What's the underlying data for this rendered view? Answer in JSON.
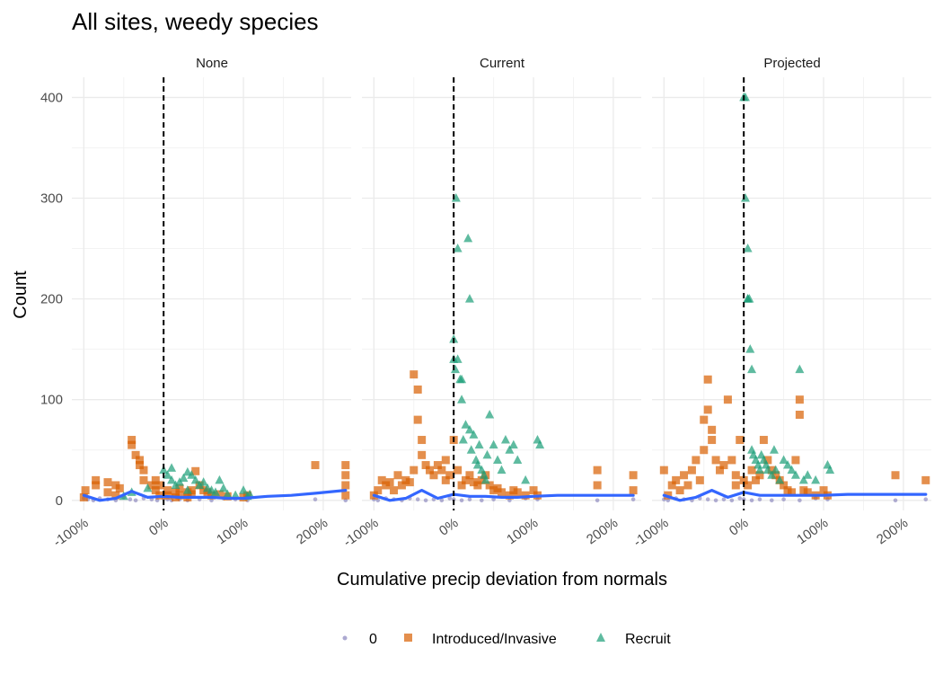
{
  "chart_data": {
    "type": "scatter",
    "title": "All sites, weedy species",
    "xlabel": "Cumulative precip deviation from normals",
    "ylabel": "Count",
    "xlim": [
      -115,
      235
    ],
    "ylim": [
      -10,
      420
    ],
    "x_ticks": [
      -100,
      0,
      100,
      200
    ],
    "x_tick_labels": [
      "-100%",
      "0%",
      "100%",
      "200%"
    ],
    "y_ticks": [
      0,
      100,
      200,
      300,
      400
    ],
    "y_tick_labels": [
      "0",
      "100",
      "200",
      "300",
      "400"
    ],
    "vline_x": 0,
    "grid": true,
    "legend_position": "bottom",
    "legend": [
      {
        "key": "zero",
        "label": "0",
        "color": "#7570b3",
        "shape": "circle"
      },
      {
        "key": "invasive",
        "label": "Introduced/Invasive",
        "color": "#d95f02",
        "shape": "square"
      },
      {
        "key": "recruit",
        "label": "Recruit",
        "color": "#1b9e77",
        "shape": "triangle"
      }
    ],
    "smooth_color": "#3366ff",
    "panels": [
      {
        "strip": "None",
        "points": {
          "zero": {
            "x": [
              -100,
              -95,
              -88,
              -80,
              -70,
              -60,
              -50,
              -42,
              -35,
              -25,
              -15,
              -8,
              0,
              5,
              10,
              20,
              30,
              45,
              60,
              75,
              90,
              105,
              190,
              228
            ],
            "y": [
              2,
              1,
              0,
              2,
              1,
              0,
              3,
              1,
              0,
              2,
              1,
              0,
              2,
              1,
              0,
              1,
              0,
              1,
              0,
              2,
              1,
              0,
              1,
              0
            ]
          },
          "invasive": {
            "x": [
              -100,
              -98,
              -85,
              -85,
              -70,
              -70,
              -60,
              -60,
              -55,
              -40,
              -40,
              -35,
              -30,
              -30,
              -25,
              -25,
              -15,
              -10,
              -10,
              -5,
              -5,
              5,
              5,
              15,
              15,
              20,
              20,
              30,
              30,
              35,
              35,
              40,
              45,
              50,
              55,
              60,
              70,
              80,
              100,
              105,
              190,
              228,
              228,
              228,
              228
            ],
            "y": [
              3,
              10,
              20,
              15,
              18,
              8,
              15,
              5,
              12,
              60,
              55,
              45,
              40,
              35,
              30,
              20,
              15,
              10,
              20,
              5,
              15,
              10,
              5,
              3,
              8,
              12,
              5,
              8,
              3,
              10,
              6,
              29,
              15,
              10,
              8,
              5,
              6,
              4,
              3,
              5,
              35,
              35,
              25,
              15,
              5
            ]
          },
          "recruit": {
            "x": [
              -50,
              -40,
              -20,
              0,
              5,
              10,
              10,
              15,
              20,
              25,
              30,
              30,
              35,
              40,
              45,
              50,
              55,
              60,
              65,
              70,
              75,
              80,
              90,
              100,
              105,
              108
            ],
            "y": [
              4,
              8,
              12,
              30,
              25,
              20,
              32,
              15,
              18,
              22,
              28,
              10,
              25,
              20,
              15,
              18,
              12,
              10,
              8,
              20,
              12,
              6,
              5,
              10,
              4,
              6
            ]
          }
        },
        "smooth": {
          "x": [
            -100,
            -80,
            -60,
            -40,
            -20,
            0,
            20,
            40,
            60,
            80,
            100,
            130,
            160,
            190,
            228
          ],
          "y": [
            5,
            0,
            2,
            9,
            3,
            4,
            3,
            3,
            3,
            2,
            2,
            4,
            5,
            7,
            10
          ]
        }
      },
      {
        "strip": "Current",
        "points": {
          "zero": {
            "x": [
              -100,
              -95,
              -85,
              -75,
              -65,
              -55,
              -45,
              -35,
              -25,
              -15,
              -5,
              0,
              10,
              20,
              35,
              50,
              70,
              90,
              105,
              180,
              225
            ],
            "y": [
              1,
              0,
              2,
              1,
              0,
              2,
              1,
              0,
              1,
              0,
              2,
              1,
              0,
              1,
              0,
              1,
              0,
              2,
              1,
              0,
              1
            ]
          },
          "invasive": {
            "x": [
              -100,
              -95,
              -90,
              -85,
              -80,
              -75,
              -70,
              -65,
              -60,
              -55,
              -50,
              -50,
              -45,
              -45,
              -40,
              -40,
              -35,
              -30,
              -25,
              -20,
              -15,
              -10,
              -10,
              -5,
              0,
              5,
              10,
              15,
              20,
              25,
              30,
              35,
              40,
              45,
              50,
              55,
              60,
              70,
              75,
              80,
              90,
              100,
              105,
              180,
              180,
              225,
              225
            ],
            "y": [
              5,
              10,
              20,
              15,
              18,
              10,
              25,
              15,
              20,
              18,
              30,
              125,
              110,
              80,
              60,
              45,
              35,
              30,
              25,
              35,
              30,
              20,
              40,
              25,
              60,
              30,
              15,
              20,
              25,
              18,
              15,
              20,
              25,
              15,
              10,
              12,
              8,
              5,
              10,
              8,
              5,
              10,
              5,
              30,
              15,
              25,
              10
            ]
          },
          "recruit": {
            "x": [
              0,
              0,
              2,
              3,
              5,
              5,
              8,
              10,
              10,
              12,
              15,
              18,
              20,
              20,
              22,
              25,
              28,
              30,
              32,
              35,
              38,
              40,
              42,
              45,
              50,
              55,
              60,
              65,
              70,
              75,
              80,
              90,
              105,
              108
            ],
            "y": [
              160,
              140,
              130,
              300,
              250,
              140,
              120,
              100,
              120,
              60,
              75,
              260,
              200,
              70,
              50,
              65,
              40,
              35,
              55,
              30,
              25,
              20,
              45,
              85,
              55,
              40,
              30,
              60,
              50,
              55,
              40,
              20,
              60,
              55
            ]
          }
        },
        "smooth": {
          "x": [
            -100,
            -80,
            -60,
            -40,
            -20,
            0,
            20,
            40,
            60,
            80,
            100,
            130,
            160,
            190,
            225
          ],
          "y": [
            5,
            0,
            2,
            10,
            2,
            6,
            4,
            4,
            3,
            3,
            4,
            5,
            5,
            5,
            5
          ]
        }
      },
      {
        "strip": "Projected",
        "points": {
          "zero": {
            "x": [
              -100,
              -95,
              -85,
              -75,
              -65,
              -55,
              -45,
              -35,
              -25,
              -15,
              -5,
              0,
              10,
              20,
              35,
              50,
              70,
              90,
              105,
              190,
              228
            ],
            "y": [
              1,
              0,
              2,
              1,
              0,
              2,
              1,
              0,
              1,
              0,
              2,
              1,
              0,
              1,
              0,
              1,
              0,
              2,
              1,
              0,
              1
            ]
          },
          "invasive": {
            "x": [
              -100,
              -95,
              -90,
              -85,
              -80,
              -75,
              -70,
              -65,
              -60,
              -55,
              -50,
              -50,
              -45,
              -45,
              -40,
              -40,
              -35,
              -30,
              -25,
              -20,
              -15,
              -10,
              -10,
              -5,
              0,
              5,
              10,
              15,
              20,
              25,
              30,
              35,
              40,
              45,
              50,
              55,
              60,
              65,
              70,
              70,
              75,
              80,
              90,
              100,
              105,
              190,
              228
            ],
            "y": [
              30,
              5,
              15,
              20,
              10,
              25,
              15,
              30,
              40,
              20,
              50,
              80,
              120,
              90,
              60,
              70,
              40,
              30,
              35,
              100,
              40,
              15,
              25,
              60,
              20,
              15,
              30,
              20,
              25,
              60,
              40,
              30,
              25,
              20,
              15,
              10,
              8,
              40,
              100,
              85,
              10,
              8,
              5,
              10,
              5,
              25,
              20
            ]
          },
          "recruit": {
            "x": [
              0,
              2,
              2,
              5,
              5,
              5,
              7,
              8,
              10,
              10,
              12,
              15,
              18,
              20,
              22,
              25,
              28,
              30,
              35,
              38,
              40,
              45,
              50,
              55,
              60,
              65,
              70,
              75,
              80,
              90,
              105,
              108
            ],
            "y": [
              400,
              400,
              300,
              250,
              200,
              200,
              200,
              150,
              130,
              50,
              45,
              40,
              35,
              30,
              45,
              40,
              35,
              30,
              25,
              50,
              30,
              20,
              40,
              35,
              30,
              25,
              130,
              20,
              25,
              20,
              35,
              30
            ]
          }
        },
        "smooth": {
          "x": [
            -100,
            -80,
            -60,
            -40,
            -20,
            0,
            20,
            40,
            60,
            80,
            100,
            130,
            160,
            190,
            228
          ],
          "y": [
            5,
            0,
            3,
            10,
            3,
            8,
            5,
            5,
            5,
            5,
            5,
            6,
            6,
            6,
            6
          ]
        }
      }
    ]
  }
}
